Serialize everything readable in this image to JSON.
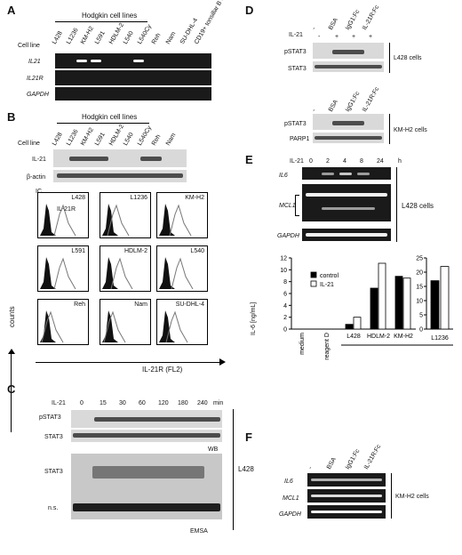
{
  "panels": [
    "A",
    "B",
    "C",
    "D",
    "E",
    "F"
  ],
  "A": {
    "group_label": "Hodgkin cell lines",
    "lanes": [
      "L428",
      "L1236",
      "KM-H2",
      "L591",
      "HDLM-2",
      "L540",
      "L540Cy",
      "Reh",
      "Nam",
      "SU-DHL-4",
      "CD19+ tonsillar B cells"
    ],
    "row_title": "Cell line",
    "rows": [
      "IL21",
      "IL21R",
      "GAPDH"
    ]
  },
  "B": {
    "group_label": "Hodgkin cell lines",
    "lanes": [
      "L428",
      "L1236",
      "KM-H2",
      "L591",
      "HDLM-2",
      "L540",
      "L540Cy",
      "Reh",
      "Nam"
    ],
    "row_title": "Cell line",
    "rows": [
      "IL-21",
      "β-actin"
    ],
    "hist_labels": [
      "L428",
      "L1236",
      "KM-H2",
      "L591",
      "HDLM-2",
      "L540",
      "Reh",
      "Nam",
      "SU-DHL-4"
    ],
    "ic_label": "IC",
    "il21r_label": "IL-21R",
    "y_axis": "counts",
    "x_axis": "IL-21R (FL2)"
  },
  "C": {
    "treatment": "IL-21",
    "times": [
      "0",
      "15",
      "30",
      "60",
      "120",
      "180",
      "240"
    ],
    "unit": "min",
    "rows": [
      "pSTAT3",
      "STAT3",
      "STAT3",
      "n.s."
    ],
    "wb": "WB",
    "emsa": "EMSA",
    "cell": "L428"
  },
  "D": {
    "conds": [
      "-",
      "BSA",
      "IgG1:Fc",
      "IL-21R:Fc"
    ],
    "treatment": "IL-21",
    "signs": [
      "-",
      "+",
      "+",
      "+"
    ],
    "top_rows": [
      "pSTAT3",
      "STAT3"
    ],
    "top_cell": "L428 cells",
    "bot_rows": [
      "pSTAT3",
      "PARP1"
    ],
    "bot_cell": "KM-H2 cells"
  },
  "E": {
    "treatment": "IL-21",
    "times": [
      "0",
      "2",
      "4",
      "8",
      "24"
    ],
    "unit": "h",
    "rows": [
      "IL6",
      "MCL1",
      "GAPDH"
    ],
    "cell": "L428 cells",
    "y_label": "IL-6 [ng/mL]",
    "legend": [
      "control",
      "IL-21"
    ]
  },
  "chart_data": [
    {
      "type": "bar",
      "categories": [
        "medium",
        "reagent D",
        "L428",
        "HDLM-2",
        "KM-H2"
      ],
      "series": [
        {
          "name": "control",
          "values": [
            0,
            0,
            0.8,
            6.9,
            8.9
          ]
        },
        {
          "name": "IL-21",
          "values": [
            0,
            0,
            2.0,
            11.1,
            8.6
          ]
        }
      ],
      "ylabel": "IL-6 [ng/mL]",
      "ylim": [
        0,
        12
      ],
      "yticks": [
        "0",
        "2",
        "4",
        "6",
        "8",
        "10",
        "12"
      ]
    },
    {
      "type": "bar",
      "categories": [
        "L1236"
      ],
      "series": [
        {
          "name": "control",
          "values": [
            17
          ]
        },
        {
          "name": "IL-21",
          "values": [
            22
          ]
        }
      ],
      "ylim": [
        0,
        25
      ],
      "yticks": [
        "0",
        "5",
        "10",
        "15",
        "20",
        "25"
      ]
    }
  ],
  "F": {
    "conds": [
      "-",
      "BSA",
      "IgG1:Fc",
      "IL-21R:Fc"
    ],
    "rows": [
      "IL6",
      "MCL1",
      "GAPDH"
    ],
    "cell": "KM-H2 cells"
  }
}
